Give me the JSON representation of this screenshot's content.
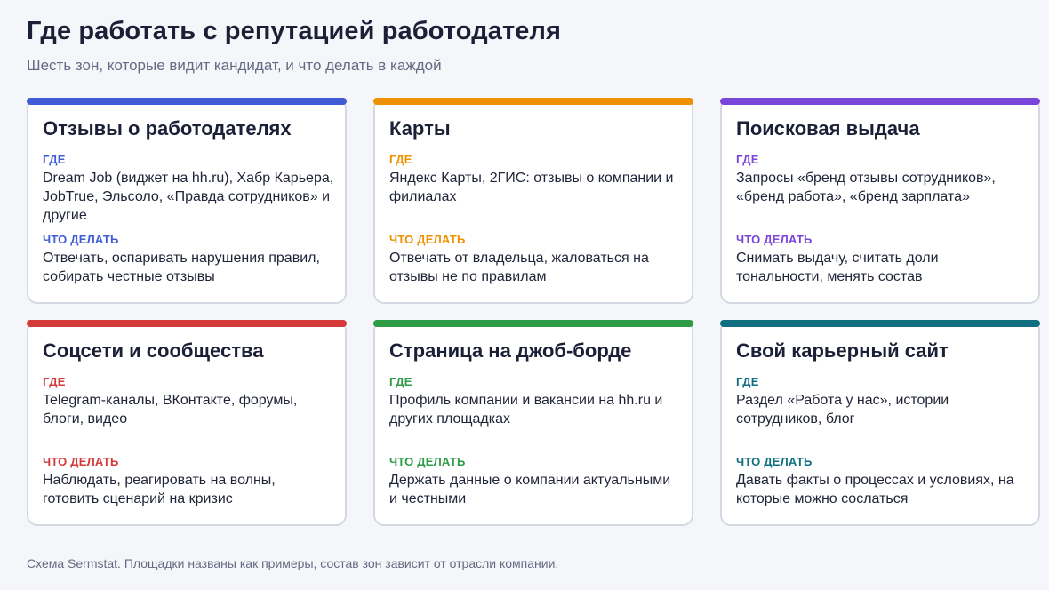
{
  "header": {
    "title": "Где работать с репутацией работодателя",
    "subtitle": "Шесть зон, которые видит кандидат, и что делать в каждой"
  },
  "labels": {
    "where": "ГДЕ",
    "todo": "ЧТО ДЕЛАТЬ"
  },
  "cards": [
    {
      "title": "Отзывы о работодателях",
      "color": "#3f5bd6",
      "where": "Dream Job (виджет на hh.ru), Хабр Карьера, JobTrue, Эльсоло, «Правда сотрудников» и другие",
      "todo": "Отвечать, оспаривать нарушения правил, собирать честные отзывы"
    },
    {
      "title": "Карты",
      "color": "#ee9100",
      "where": "Яндекс Карты, 2ГИС: отзывы о компании и филиалах",
      "todo": "Отвечать от владельца, жаловаться на отзывы не по правилам"
    },
    {
      "title": "Поисковая выдача",
      "color": "#7a45d9",
      "where": "Запросы «бренд отзывы сотрудников», «бренд работа», «бренд зарплата»",
      "todo": "Снимать выдачу, считать доли тональности, менять состав"
    },
    {
      "title": "Соцсети и сообщества",
      "color": "#d43a3a",
      "where": "Telegram-каналы, ВКонтакте, форумы, блоги, видео",
      "todo": "Наблюдать, реагировать на волны, готовить сценарий на кризис"
    },
    {
      "title": "Страница на джоб-борде",
      "color": "#2e9b45",
      "where": "Профиль компании и вакансии на hh.ru и других площадках",
      "todo": "Держать данные о компании актуальными и честными"
    },
    {
      "title": "Свой карьерный сайт",
      "color": "#0f6e80",
      "where": "Раздел «Работа у нас», истории сотрудников, блог",
      "todo": "Давать факты о процессах и условиях, на которые можно сослаться"
    }
  ],
  "footer": {
    "note": "Схема Sermstat. Площадки названы как примеры, состав зон зависит от отрасли компании."
  }
}
